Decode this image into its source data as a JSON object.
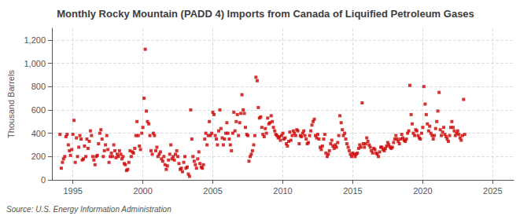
{
  "chart_data": {
    "type": "scatter",
    "title": "Monthly Rocky Mountain (PADD 4) Imports from Canada of Liquified Petroleum Gases",
    "ylabel": "Thousand Barrels",
    "annotations": [
      "Source: U.S. Energy Information Administration"
    ],
    "color": "#cc0000",
    "marker": "square",
    "grid": true,
    "xlim": [
      1993.5,
      2026.5
    ],
    "ylim": [
      0,
      1300
    ],
    "xticks": [
      1995,
      2000,
      2005,
      2010,
      2015,
      2020,
      2025
    ],
    "yticks": [
      0,
      200,
      400,
      600,
      800,
      {
        "value": 1000,
        "label": "1,000"
      },
      {
        "value": 1200,
        "label": "1,200"
      }
    ],
    "x": [
      1994.08,
      1994.17,
      1994.25,
      1994.33,
      1994.42,
      1994.5,
      1994.58,
      1994.67,
      1994.75,
      1994.83,
      1994.92,
      1995,
      1995.08,
      1995.17,
      1995.25,
      1995.33,
      1995.42,
      1995.5,
      1995.58,
      1995.67,
      1995.75,
      1995.83,
      1995.92,
      1996,
      1996.08,
      1996.17,
      1996.25,
      1996.33,
      1996.42,
      1996.5,
      1996.58,
      1996.67,
      1996.75,
      1996.83,
      1996.92,
      1997,
      1997.08,
      1997.17,
      1997.25,
      1997.33,
      1997.42,
      1997.5,
      1997.58,
      1997.67,
      1997.75,
      1997.83,
      1997.92,
      1998,
      1998.08,
      1998.17,
      1998.25,
      1998.33,
      1998.42,
      1998.5,
      1998.58,
      1998.67,
      1998.75,
      1998.83,
      1998.92,
      1999,
      1999.08,
      1999.17,
      1999.25,
      1999.33,
      1999.42,
      1999.5,
      1999.58,
      1999.67,
      1999.75,
      1999.83,
      1999.92,
      2000,
      2000.08,
      2000.17,
      2000.25,
      2000.33,
      2000.42,
      2000.5,
      2000.58,
      2000.67,
      2000.75,
      2000.83,
      2000.92,
      2001,
      2001.08,
      2001.17,
      2001.25,
      2001.33,
      2001.42,
      2001.5,
      2001.58,
      2001.67,
      2001.75,
      2001.83,
      2001.92,
      2002,
      2002.08,
      2002.17,
      2002.25,
      2002.33,
      2002.42,
      2002.5,
      2002.58,
      2002.67,
      2002.75,
      2002.83,
      2002.92,
      2003,
      2003.08,
      2003.17,
      2003.25,
      2003.33,
      2003.42,
      2003.5,
      2003.58,
      2003.67,
      2003.75,
      2003.83,
      2003.92,
      2004,
      2004.08,
      2004.17,
      2004.25,
      2004.33,
      2004.42,
      2004.5,
      2004.58,
      2004.67,
      2004.75,
      2004.83,
      2004.92,
      2005,
      2005.08,
      2005.17,
      2005.25,
      2005.33,
      2005.42,
      2005.5,
      2005.58,
      2005.67,
      2005.75,
      2005.83,
      2005.92,
      2006,
      2006.08,
      2006.17,
      2006.25,
      2006.33,
      2006.42,
      2006.5,
      2006.58,
      2006.67,
      2006.75,
      2006.83,
      2006.92,
      2007,
      2007.08,
      2007.17,
      2007.25,
      2007.33,
      2007.42,
      2007.5,
      2007.58,
      2007.67,
      2007.75,
      2007.83,
      2007.92,
      2008,
      2008.08,
      2008.17,
      2008.25,
      2008.33,
      2008.42,
      2008.5,
      2008.58,
      2008.67,
      2008.75,
      2008.83,
      2008.92,
      2009,
      2009.08,
      2009.17,
      2009.25,
      2009.33,
      2009.42,
      2009.5,
      2009.58,
      2009.67,
      2009.75,
      2009.83,
      2009.92,
      2010,
      2010.08,
      2010.17,
      2010.25,
      2010.33,
      2010.42,
      2010.5,
      2010.58,
      2010.67,
      2010.75,
      2010.83,
      2010.92,
      2011,
      2011.08,
      2011.17,
      2011.25,
      2011.33,
      2011.42,
      2011.5,
      2011.58,
      2011.67,
      2011.75,
      2011.83,
      2011.92,
      2012,
      2012.08,
      2012.17,
      2012.25,
      2012.33,
      2012.42,
      2012.5,
      2012.58,
      2012.67,
      2012.75,
      2012.83,
      2012.92,
      2013,
      2013.08,
      2013.17,
      2013.25,
      2013.33,
      2013.42,
      2013.5,
      2013.58,
      2013.67,
      2013.75,
      2013.83,
      2013.92,
      2014,
      2014.08,
      2014.17,
      2014.25,
      2014.33,
      2014.42,
      2014.5,
      2014.58,
      2014.67,
      2014.75,
      2014.83,
      2014.92,
      2015,
      2015.08,
      2015.17,
      2015.25,
      2015.33,
      2015.42,
      2015.5,
      2015.58,
      2015.67,
      2015.75,
      2015.83,
      2015.92,
      2016,
      2016.08,
      2016.17,
      2016.25,
      2016.33,
      2016.42,
      2016.5,
      2016.58,
      2016.67,
      2016.75,
      2016.83,
      2016.92,
      2017,
      2017.08,
      2017.17,
      2017.25,
      2017.33,
      2017.42,
      2017.5,
      2017.58,
      2017.67,
      2017.75,
      2017.83,
      2017.92,
      2018,
      2018.08,
      2018.17,
      2018.25,
      2018.33,
      2018.42,
      2018.5,
      2018.58,
      2018.67,
      2018.75,
      2018.83,
      2018.92,
      2019,
      2019.08,
      2019.17,
      2019.25,
      2019.33,
      2019.42,
      2019.5,
      2019.58,
      2019.67,
      2019.75,
      2019.83,
      2019.92,
      2020,
      2020.08,
      2020.17,
      2020.25,
      2020.33,
      2020.42,
      2020.5,
      2020.58,
      2020.67,
      2020.75,
      2020.83,
      2020.92,
      2021,
      2021.08,
      2021.17,
      2021.25,
      2021.33,
      2021.42,
      2021.5,
      2021.58,
      2021.67,
      2021.75,
      2021.83,
      2021.92,
      2022,
      2022.08,
      2022.17,
      2022.25,
      2022.33,
      2022.42,
      2022.5,
      2022.58,
      2022.67,
      2022.75,
      2022.83,
      2022.92,
      2023
    ],
    "values": [
      390,
      100,
      150,
      180,
      200,
      370,
      390,
      300,
      250,
      210,
      260,
      390,
      510,
      150,
      360,
      200,
      280,
      380,
      350,
      170,
      180,
      290,
      200,
      350,
      270,
      330,
      420,
      380,
      200,
      170,
      130,
      200,
      210,
      310,
      400,
      430,
      350,
      200,
      250,
      300,
      380,
      260,
      150,
      200,
      230,
      200,
      300,
      250,
      190,
      220,
      200,
      250,
      220,
      180,
      200,
      140,
      130,
      80,
      90,
      150,
      250,
      200,
      240,
      230,
      270,
      380,
      500,
      380,
      290,
      260,
      400,
      450,
      700,
      1120,
      590,
      500,
      480,
      380,
      250,
      220,
      400,
      380,
      250,
      280,
      200,
      220,
      240,
      180,
      160,
      200,
      130,
      90,
      120,
      170,
      220,
      300,
      180,
      200,
      170,
      220,
      250,
      200,
      140,
      90,
      100,
      70,
      150,
      200,
      100,
      110,
      50,
      30,
      600,
      350,
      200,
      160,
      130,
      100,
      180,
      240,
      140,
      110,
      100,
      130,
      350,
      400,
      300,
      380,
      500,
      380,
      400,
      580,
      560,
      380,
      350,
      300,
      420,
      600,
      440,
      360,
      300,
      350,
      400,
      490,
      400,
      350,
      300,
      250,
      400,
      580,
      420,
      500,
      560,
      380,
      490,
      570,
      730,
      600,
      570,
      450,
      390,
      380,
      160,
      200,
      220,
      250,
      300,
      380,
      880,
      850,
      620,
      530,
      540,
      450,
      390,
      370,
      440,
      400,
      530,
      480,
      490,
      550,
      500,
      450,
      420,
      390,
      380,
      360,
      370,
      340,
      380,
      400,
      350,
      360,
      310,
      290,
      330,
      410,
      340,
      380,
      420,
      400,
      380,
      430,
      420,
      310,
      380,
      370,
      400,
      420,
      380,
      350,
      310,
      320,
      380,
      420,
      470,
      500,
      520,
      380,
      360,
      390,
      350,
      280,
      260,
      290,
      350,
      390,
      230,
      200,
      220,
      250,
      310,
      340,
      290,
      270,
      300,
      280,
      320,
      380,
      550,
      490,
      430,
      380,
      400,
      350,
      310,
      280,
      250,
      220,
      200,
      230,
      220,
      200,
      220,
      230,
      270,
      300,
      280,
      660,
      310,
      280,
      310,
      360,
      330,
      300,
      280,
      250,
      230,
      270,
      260,
      230,
      220,
      200,
      240,
      280,
      280,
      260,
      250,
      270,
      290,
      320,
      300,
      280,
      270,
      280,
      320,
      350,
      380,
      350,
      330,
      310,
      350,
      390,
      360,
      340,
      330,
      350,
      400,
      420,
      810,
      560,
      480,
      400,
      380,
      430,
      420,
      380,
      360,
      350,
      400,
      450,
      800,
      650,
      560,
      480,
      420,
      460,
      400,
      380,
      350,
      380,
      440,
      500,
      590,
      750,
      430,
      380,
      410,
      450,
      390,
      370,
      350,
      330,
      380,
      450,
      500,
      450,
      420,
      380,
      400,
      420,
      390,
      360,
      340,
      380,
      690,
      390
    ]
  }
}
